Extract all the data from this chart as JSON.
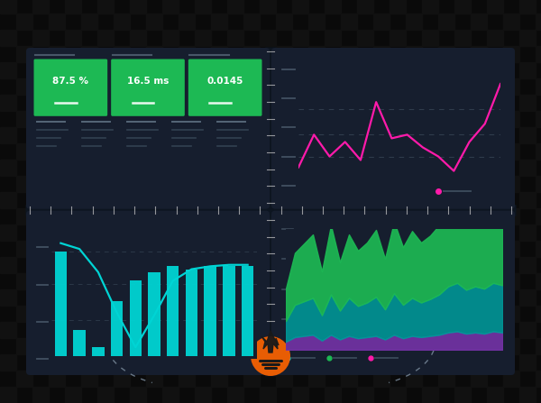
{
  "bg_color": "#0a0a0a",
  "panel_bg": "#161e2e",
  "sep_color": "#0d0d0d",
  "tick_color": "#cccccc",
  "green_color": "#1db954",
  "cyan_color": "#00d4d4",
  "magenta_color": "#ff1aaa",
  "teal_color": "#009999",
  "purple_color": "#7733aa",
  "orange_color": "#e85d04",
  "white": "#ffffff",
  "gray_label": "#556677",
  "gray_dim": "#3a4a5a",
  "metric_values": [
    "87.5 %",
    "16.5 ms",
    "0.0145"
  ],
  "line_data_pink": [
    52,
    70,
    58,
    66,
    56,
    88,
    68,
    70,
    63,
    58,
    50,
    66,
    76,
    98
  ],
  "bar_data": [
    0.72,
    0.18,
    0.06,
    0.38,
    0.52,
    0.58,
    0.62,
    0.6,
    0.62,
    0.62,
    0.62
  ],
  "line_data_cyan": [
    0.78,
    0.74,
    0.58,
    0.3,
    0.06,
    0.28,
    0.52,
    0.6,
    0.62,
    0.63,
    0.63
  ],
  "area_green": [
    0.28,
    0.45,
    0.5,
    0.55,
    0.38,
    0.6,
    0.42,
    0.55,
    0.48,
    0.52,
    0.58,
    0.44,
    0.62,
    0.5,
    0.58,
    0.52,
    0.55,
    0.6,
    0.68,
    0.72,
    0.65,
    0.7,
    0.68,
    0.75,
    0.72
  ],
  "area_teal": [
    0.18,
    0.28,
    0.3,
    0.32,
    0.22,
    0.35,
    0.25,
    0.33,
    0.28,
    0.3,
    0.34,
    0.26,
    0.36,
    0.29,
    0.33,
    0.3,
    0.32,
    0.35,
    0.4,
    0.42,
    0.38,
    0.4,
    0.39,
    0.42,
    0.41
  ],
  "area_purple": [
    0.07,
    0.11,
    0.12,
    0.13,
    0.08,
    0.13,
    0.09,
    0.12,
    0.1,
    0.11,
    0.12,
    0.09,
    0.13,
    0.1,
    0.12,
    0.11,
    0.12,
    0.13,
    0.15,
    0.16,
    0.14,
    0.15,
    0.14,
    0.16,
    0.15
  ],
  "checker_size": 18,
  "checker_dark": "#111111",
  "checker_light": "#000000"
}
